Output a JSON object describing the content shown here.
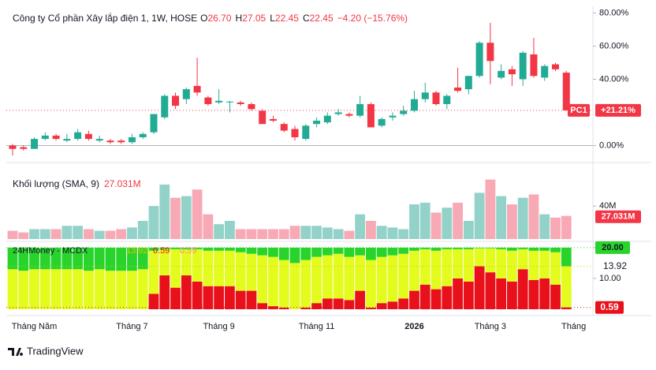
{
  "chart_data": [
    {
      "type": "candlestick",
      "title": "Công ty Cổ phần Xây lắp điện 1, 1W, HOSE",
      "ohlc_labels": [
        {
          "name": "O",
          "value": "26.70"
        },
        {
          "name": "H",
          "value": "27.05"
        },
        {
          "name": "L",
          "value": "22.45"
        },
        {
          "name": "C",
          "value": "22.45"
        }
      ],
      "change": "−4.20 (−15.76%)",
      "open": [
        0,
        -1,
        -2,
        4,
        6,
        3,
        4,
        7,
        3,
        3,
        3,
        2,
        5,
        8,
        17,
        30,
        28,
        36,
        29,
        26,
        26,
        26,
        25,
        21,
        16,
        13,
        10,
        4,
        13,
        14,
        19,
        19,
        18,
        25,
        12,
        17,
        19,
        21,
        28,
        32,
        25,
        35,
        34,
        42,
        62,
        41,
        46,
        40,
        55,
        41,
        49,
        44
      ],
      "high": [
        1,
        0,
        5,
        8,
        7,
        7,
        10,
        9,
        6,
        4,
        4,
        7,
        8,
        19,
        31,
        32,
        35,
        53,
        30,
        34,
        27,
        27,
        26,
        22,
        18,
        14,
        12,
        13,
        17,
        20,
        22,
        20,
        30,
        26,
        17,
        20,
        24,
        33,
        38,
        33,
        31,
        47,
        42,
        63,
        74,
        49,
        48,
        57,
        65,
        49,
        50,
        45
      ],
      "low": [
        -6,
        -3,
        -2,
        3,
        3,
        2,
        3,
        3,
        2,
        1,
        1,
        1,
        4,
        7,
        16,
        22,
        25,
        30,
        24,
        25,
        20,
        24,
        21,
        13,
        14,
        8,
        3,
        3,
        11,
        13,
        18,
        17,
        17,
        11,
        11,
        15,
        18,
        20,
        26,
        24,
        22,
        32,
        31,
        41,
        37,
        40,
        36,
        36,
        41,
        39,
        45,
        21
      ],
      "close": [
        -2,
        -2,
        4,
        6,
        4,
        4,
        8,
        4,
        4,
        2,
        2,
        5,
        7,
        19,
        30,
        24,
        34,
        32,
        25,
        27,
        26.5,
        25,
        22,
        13,
        15,
        9,
        5,
        12,
        15,
        18,
        20,
        18,
        25,
        11,
        16,
        18,
        21,
        28,
        32,
        25,
        30,
        33,
        42,
        62,
        51,
        45,
        43,
        56,
        42,
        48,
        46,
        21.21
      ],
      "up_color": "#22ab94",
      "down_color": "#f23645",
      "ylim": [
        -5,
        84
      ],
      "yticks": [
        {
          "value": 0,
          "label": "0.00%"
        },
        {
          "value": 40,
          "label": "40.00%"
        },
        {
          "value": 60,
          "label": "60.00%"
        },
        {
          "value": 80,
          "label": "80.00%"
        }
      ],
      "zero_line": true,
      "symbol": "PC1",
      "last_value": 21.21,
      "last_value_label": "+21.21%",
      "xlabels": [
        {
          "index": 2,
          "label": "Tháng Năm"
        },
        {
          "index": 11,
          "label": "Tháng 7"
        },
        {
          "index": 19,
          "label": "Tháng 9"
        },
        {
          "index": 28,
          "label": "Tháng 11"
        },
        {
          "index": 37,
          "label": "2026",
          "bold": true
        },
        {
          "index": 44,
          "label": "Tháng 3"
        },
        {
          "index": 52,
          "label": "Tháng"
        }
      ]
    },
    {
      "type": "bar",
      "title": "Khối lượng (SMA, 9)",
      "sma": 27.031,
      "sma_label": "27.031M",
      "values": [
        10,
        8,
        12,
        12,
        12,
        16,
        16,
        12,
        10,
        10,
        12,
        14,
        22,
        40,
        66,
        50,
        52,
        60,
        30,
        18,
        22,
        12,
        12,
        12,
        12,
        12,
        16,
        16,
        16,
        14,
        12,
        10,
        30,
        22,
        16,
        14,
        12,
        42,
        44,
        32,
        38,
        44,
        22,
        56,
        72,
        52,
        42,
        50,
        54,
        30,
        26,
        28
      ],
      "up_color": "#92d2c8",
      "down_color": "#f7a9b5",
      "ylim": [
        0,
        86
      ],
      "yticks": [
        {
          "value": 40,
          "label": "40M"
        }
      ]
    },
    {
      "type": "stacked_bar",
      "title": "24HMoney - MCDX",
      "legend_values": [
        13.92,
        0.59,
        0.59
      ],
      "series": [
        {
          "color": "#e8101a",
          "values": [
            0,
            0,
            0,
            0,
            0,
            0,
            0,
            0,
            0,
            0,
            0,
            0,
            0,
            5,
            11,
            7,
            11,
            9,
            7.5,
            7.5,
            7.5,
            6,
            6,
            2,
            1,
            0.5,
            0,
            0.5,
            2,
            3.5,
            3.5,
            3,
            6,
            0.5,
            2,
            2.5,
            3.5,
            6,
            8,
            6.5,
            7.5,
            10,
            9,
            14,
            12,
            10,
            9,
            13,
            9.5,
            10,
            8,
            0.59
          ]
        },
        {
          "color": "#e4fb1e",
          "values": [
            13,
            12.5,
            13,
            13,
            13,
            13,
            13,
            12.5,
            13,
            12.5,
            12.5,
            12.5,
            13,
            14,
            8.5,
            12.5,
            8.5,
            10.5,
            11.5,
            11.5,
            11.5,
            12.5,
            12,
            15.5,
            16,
            15.5,
            15,
            15.5,
            15,
            14,
            14.5,
            14,
            11.5,
            15.5,
            15,
            15,
            14.5,
            13,
            11.5,
            12.5,
            12,
            9.5,
            10.5,
            5.8,
            7.8,
            9.5,
            10,
            6.5,
            9.5,
            9,
            10.5,
            13.33
          ]
        },
        {
          "color": "#28d42b",
          "values": [
            7,
            7.5,
            7,
            7,
            7,
            7,
            7,
            7.5,
            7,
            7.5,
            7.5,
            7.5,
            7,
            1,
            0.5,
            0.5,
            0.5,
            0.5,
            1,
            1,
            1,
            1.5,
            2,
            2.5,
            3,
            4,
            5,
            4,
            3,
            2.5,
            2,
            3,
            2.5,
            4,
            3,
            2.5,
            2,
            1,
            0.5,
            1,
            0.5,
            0.5,
            0.5,
            0.2,
            0.2,
            0.5,
            1,
            0.5,
            1,
            1,
            1.5,
            6.08
          ]
        }
      ],
      "ylim": [
        0,
        21
      ],
      "yticks": [
        {
          "value": 10,
          "label": "10.00"
        },
        {
          "value": 20,
          "label": "20.00"
        }
      ]
    }
  ],
  "footer": {
    "brand": "TradingView"
  }
}
